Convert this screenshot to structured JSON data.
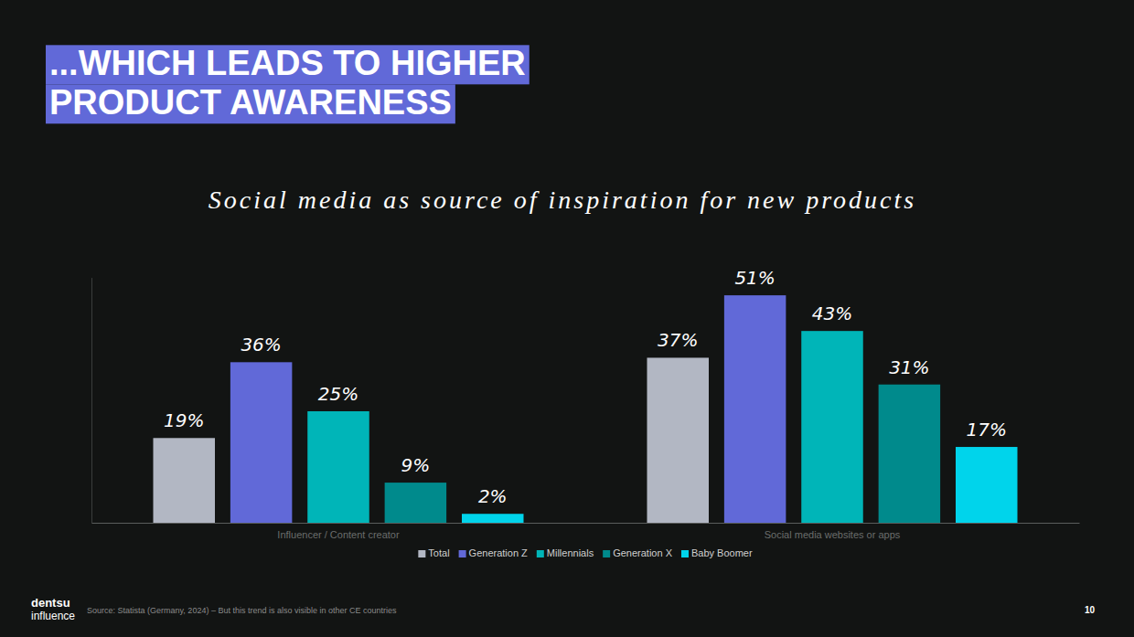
{
  "page": {
    "title": "...WHICH LEADS TO HIGHER PRODUCT AWARENESS",
    "source": "Source: Statista (Germany, 2024) – But this trend is also visible in other CE countries",
    "logo": {
      "line1": "dentsu",
      "line2": "influence"
    },
    "page_number": "10"
  },
  "chart_data": {
    "type": "bar",
    "title": "Social media as source of inspiration for new products",
    "categories": [
      "Influencer / Content creator",
      "Social media websites or apps"
    ],
    "series": [
      {
        "name": "Total",
        "color": "#b2b7c3",
        "values": [
          19,
          37
        ],
        "value_labels": [
          "19%",
          "37%"
        ]
      },
      {
        "name": "Generation Z",
        "color": "#6169d8",
        "values": [
          36,
          51
        ],
        "value_labels": [
          "36%",
          "51%"
        ]
      },
      {
        "name": "Millennials",
        "color": "#00b5b8",
        "values": [
          25,
          43
        ],
        "value_labels": [
          "25%",
          "43%"
        ]
      },
      {
        "name": "Generation X",
        "color": "#008a8c",
        "values": [
          9,
          31
        ],
        "value_labels": [
          "9%",
          "31%"
        ]
      },
      {
        "name": "Baby Boomer",
        "color": "#00d4eb",
        "values": [
          2,
          17
        ],
        "value_labels": [
          "2%",
          "17%"
        ]
      }
    ],
    "ylim": [
      0,
      55
    ],
    "data_labels": true,
    "tick_labels": "x",
    "grid": false,
    "legend": "bottom"
  }
}
